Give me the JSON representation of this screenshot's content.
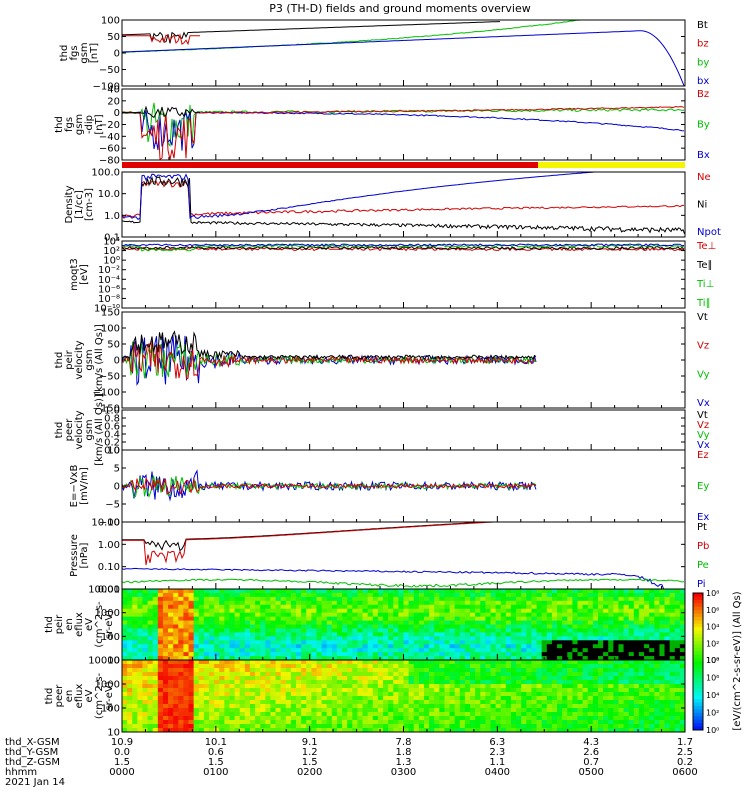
{
  "chart_data": {
    "type": "line",
    "title": "P3 (TH-D) fields and ground moments overview",
    "date_label": "2021 Jan 14",
    "x_rows": [
      {
        "label": "thd_X-GSM",
        "values": [
          "10.9",
          "10.1",
          "9.1",
          "7.8",
          "6.3",
          "4.3",
          "1.7"
        ]
      },
      {
        "label": "thd_Y-GSM",
        "values": [
          "0.0",
          "0.6",
          "1.2",
          "1.8",
          "2.3",
          "2.6",
          "2.5"
        ]
      },
      {
        "label": "thd_Z-GSM",
        "values": [
          "1.5",
          "1.5",
          "1.5",
          "1.3",
          "1.1",
          "0.7",
          "0.2"
        ]
      },
      {
        "label": "hhmm",
        "values": [
          "0000",
          "0100",
          "0200",
          "0300",
          "0400",
          "0500",
          "0600"
        ]
      }
    ],
    "panels": [
      {
        "id": "fgs",
        "type": "line",
        "ylabel": [
          "thd",
          "fgs",
          "gsm",
          "[nT]"
        ],
        "ytick_labels": [
          "100",
          "50",
          "0",
          "−50",
          "−100"
        ],
        "series": [
          {
            "name": "Bt",
            "color": "#000000"
          },
          {
            "name": "bz",
            "color": "#d40000"
          },
          {
            "name": "by",
            "color": "#00c000"
          },
          {
            "name": "bx",
            "color": "#0000d0"
          }
        ]
      },
      {
        "id": "fgs-dip",
        "type": "line",
        "ylabel": [
          "thd",
          "fgs",
          "gsm",
          "-dip",
          "[nT]"
        ],
        "ytick_labels": [
          "40",
          "20",
          "0",
          "−20",
          "−40",
          "−60",
          "−80"
        ],
        "series": [
          {
            "name": "Bz",
            "color": "#d40000"
          },
          {
            "name": "By",
            "color": "#00c000"
          },
          {
            "name": "Bx",
            "color": "#0000d0"
          }
        ]
      },
      {
        "id": "density",
        "type": "line",
        "log": true,
        "ylabel": [
          "Density",
          "[1/cc]",
          "[cm-3]"
        ],
        "ytick_labels": [
          "100.0",
          "10.0",
          "1.0",
          "0.1"
        ],
        "series": [
          {
            "name": "Ne",
            "color": "#d40000"
          },
          {
            "name": "Ni",
            "color": "#000000"
          },
          {
            "name": "Npot",
            "color": "#0000d0"
          }
        ]
      },
      {
        "id": "temperature",
        "type": "line",
        "log": true,
        "ylabel": [
          "moqt3",
          "[eV]"
        ],
        "ytick_labels": [
          "10⁴",
          "10²",
          "10⁰",
          "10⁻²",
          "10⁻⁴",
          "10⁻⁶",
          "10⁻⁸",
          "10⁻¹⁰"
        ],
        "series": [
          {
            "name": "Te⊥",
            "color": "#d40000"
          },
          {
            "name": "Te∥",
            "color": "#000000"
          },
          {
            "name": "Ti⊥",
            "color": "#00c000"
          },
          {
            "name": "Ti∥",
            "color": "#00c000"
          }
        ]
      },
      {
        "id": "peir-velocity",
        "type": "line",
        "ylabel": [
          "thd",
          "peir",
          "velocity",
          "gsm",
          "[km/s (All Qs)]"
        ],
        "ytick_labels": [
          "150",
          "100",
          "50",
          "0",
          "−50",
          "−100",
          "−150"
        ],
        "series": [
          {
            "name": "Vt",
            "color": "#000000"
          },
          {
            "name": "Vz",
            "color": "#d40000"
          },
          {
            "name": "Vy",
            "color": "#00c000"
          },
          {
            "name": "Vx",
            "color": "#0000d0"
          }
        ]
      },
      {
        "id": "peer-velocity",
        "type": "line",
        "ylabel": [
          "thd",
          "peer",
          "velocity",
          "gsm",
          "[km/s (All Qs)]"
        ],
        "ytick_labels": [
          "1.0",
          "0.8",
          "0.6",
          "0.4",
          "0.2",
          "0.0"
        ],
        "series": [
          {
            "name": "Vt",
            "color": "#000000"
          },
          {
            "name": "Vz",
            "color": "#d40000"
          },
          {
            "name": "Vy",
            "color": "#00c000"
          },
          {
            "name": "Vx",
            "color": "#0000d0"
          }
        ]
      },
      {
        "id": "efield",
        "type": "line",
        "ylabel": [
          "E=−VxB",
          "[mV/m]"
        ],
        "ytick_labels": [
          "10",
          "5",
          "0",
          "−5",
          "−10"
        ],
        "series": [
          {
            "name": "Ez",
            "color": "#d40000"
          },
          {
            "name": "Ey",
            "color": "#00c000"
          },
          {
            "name": "Ex",
            "color": "#0000d0"
          }
        ]
      },
      {
        "id": "pressure",
        "type": "line",
        "log": true,
        "ylabel": [
          "Pressure",
          "[nPa]"
        ],
        "ytick_labels": [
          "10.00",
          "1.00",
          "0.10",
          "0.01"
        ],
        "series": [
          {
            "name": "Pt",
            "color": "#000000"
          },
          {
            "name": "Pb",
            "color": "#d40000"
          },
          {
            "name": "Pe",
            "color": "#00c000"
          },
          {
            "name": "Pi",
            "color": "#0000d0"
          }
        ]
      },
      {
        "id": "peir-eflux",
        "type": "heatmap",
        "ylabel": [
          "thd",
          "peir",
          "en",
          "eflux",
          "eV",
          "(cm^2-s-",
          "sr-eV)"
        ],
        "ytick_labels": [
          "10000",
          "1000",
          "100",
          "10"
        ]
      },
      {
        "id": "peer-eflux",
        "type": "heatmap",
        "ylabel": [
          "thd",
          "peer",
          "en",
          "eflux",
          "eV",
          "(cm^2-s-",
          "sr-eV)"
        ],
        "ytick_labels": [
          "10000",
          "1000",
          "100",
          "10"
        ]
      }
    ],
    "colorbar": {
      "label": "[eV/(cm^2-s-sr-eV)] (All Qs)",
      "tick_labels": [
        "10⁸",
        "10⁶",
        "10⁴",
        "10²",
        "10⁰"
      ]
    },
    "colors": {
      "red": "#d40000",
      "green": "#00c000",
      "blue": "#0000d0",
      "black": "#000000",
      "yellow": "#f5f500"
    }
  }
}
